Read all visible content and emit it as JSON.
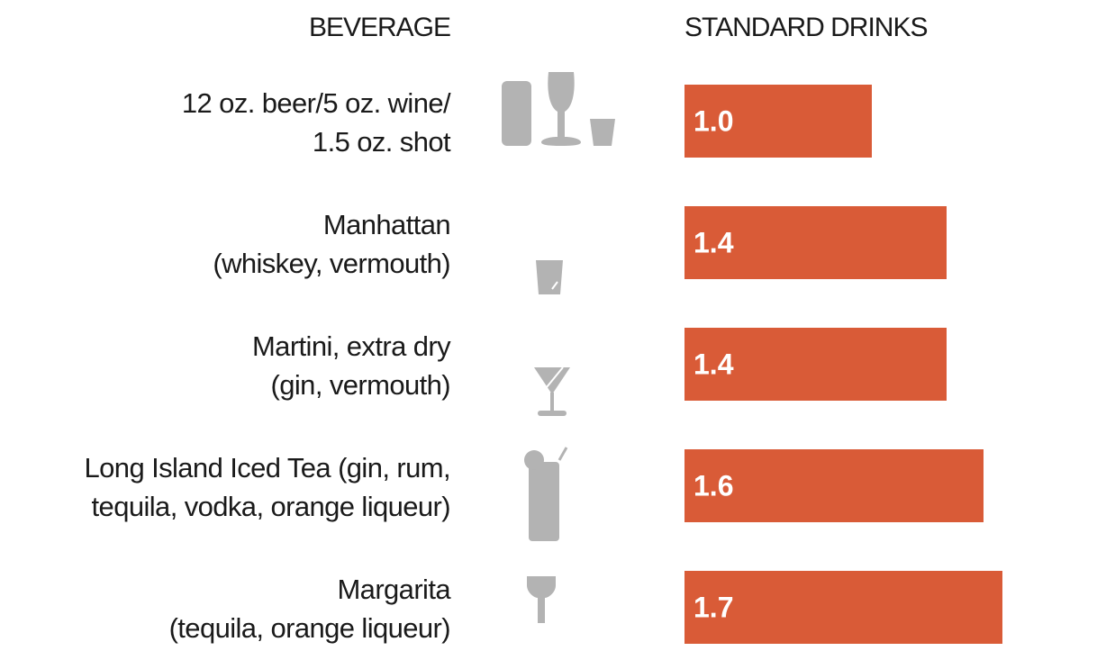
{
  "chart_data": {
    "type": "bar",
    "orientation": "horizontal",
    "xlabel": "STANDARD DRINKS",
    "ylabel": "BEVERAGE",
    "categories": [
      [
        "12 oz. beer/5 oz. wine/",
        "1.5 oz. shot"
      ],
      [
        "Manhattan",
        "(whiskey,  vermouth)"
      ],
      [
        "Martini, extra dry",
        "(gin, vermouth)"
      ],
      [
        "Long Island Iced Tea (gin, rum,",
        "tequila, vodka, orange liqueur)"
      ],
      [
        "Margarita",
        "(tequila, orange liqueur)"
      ]
    ],
    "values": [
      1.0,
      1.4,
      1.4,
      1.6,
      1.7
    ],
    "value_labels": [
      "1.0",
      "1.4",
      "1.4",
      "1.6",
      "1.7"
    ],
    "icons": [
      "beer-wine-shot-icon",
      "rocks-glass-icon",
      "martini-glass-icon",
      "highball-glass-icon",
      "margarita-glass-icon"
    ],
    "bar_color": "#d95b37",
    "icon_color": "#b3b3b3"
  }
}
